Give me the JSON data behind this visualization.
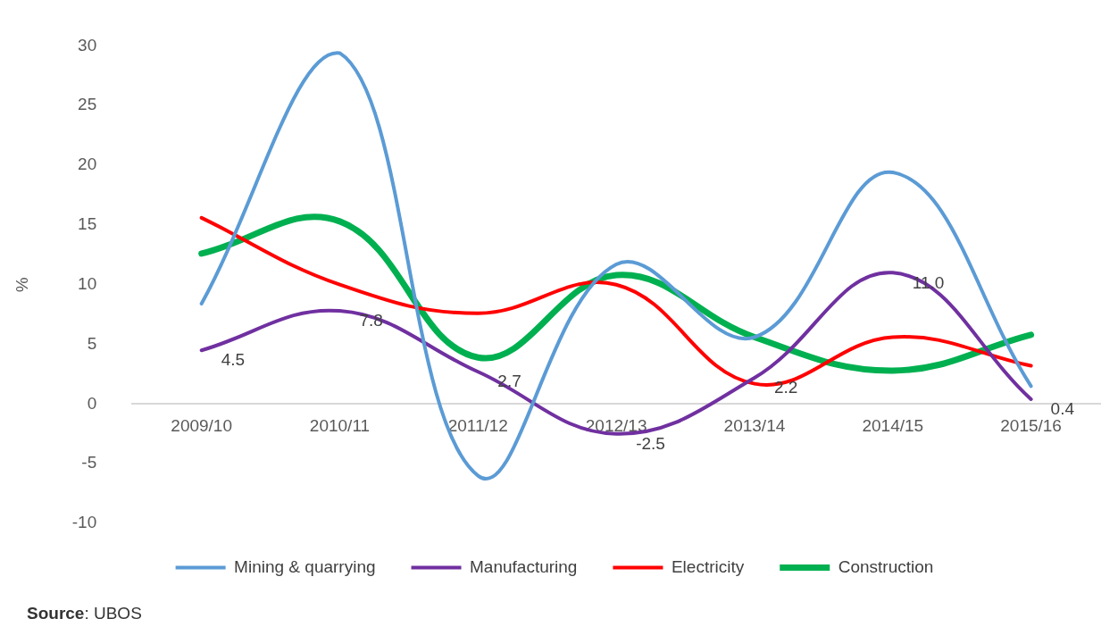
{
  "chart_data": {
    "type": "line",
    "ylabel": "%",
    "categories": [
      "2009/10",
      "2010/11",
      "2011/12",
      "2012/13",
      "2013/14",
      "2014/15",
      "2015/16"
    ],
    "series": [
      {
        "name": "Mining & quarrying",
        "color": "#5b9bd5",
        "values": [
          8.4,
          29.4,
          -6.0,
          11.7,
          5.6,
          19.4,
          1.5
        ]
      },
      {
        "name": "Manufacturing",
        "color": "#7030a0",
        "values": [
          4.5,
          7.8,
          2.7,
          -2.5,
          2.2,
          11.0,
          0.4
        ],
        "value_labels": [
          "4.5",
          "7.8",
          "2.7",
          "-2.5",
          "2.2",
          "11.0",
          "0.4"
        ]
      },
      {
        "name": "Electricity",
        "color": "#ff0000",
        "values": [
          15.6,
          10.0,
          7.6,
          10.0,
          1.7,
          5.6,
          3.2
        ]
      },
      {
        "name": "Construction",
        "color": "#00b050",
        "values": [
          12.6,
          15.3,
          3.9,
          10.8,
          5.6,
          2.8,
          5.8
        ]
      }
    ],
    "ylim": [
      -10,
      30
    ],
    "yticks": [
      -10,
      -5,
      0,
      5,
      10,
      15,
      20,
      25,
      30
    ],
    "grid": false,
    "legend": "bottom",
    "marker": "none",
    "line_style": "solid",
    "annotations": [
      "Source: UBOS"
    ]
  }
}
